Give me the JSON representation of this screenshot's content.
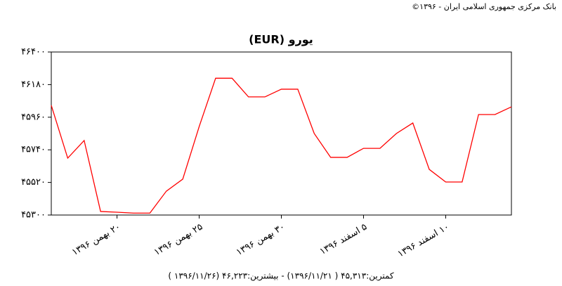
{
  "chart_data": {
    "type": "line",
    "title": "یورو (EUR)",
    "credit": "بانک مرکزی جمهوری اسلامی ایران - ۱۳۹۶©",
    "caption": "کمترین:۴۵,۳۱۳ ( ۱۳۹۶/۱۱/۲۱) - بیشترین:۴۶,۲۲۳ (۱۳۹۶/۱۱/۲۶ )",
    "categories": [
      null,
      null,
      null,
      null,
      "۲۰ بهمن ۱۳۹۶",
      null,
      null,
      null,
      null,
      "۲۵ بهمن ۱۳۹۶",
      null,
      null,
      null,
      null,
      "۳۰ بهمن ۱۳۹۶",
      null,
      null,
      null,
      null,
      "۵ اسفند ۱۳۹۶",
      null,
      null,
      null,
      null,
      "۱۰ اسفند ۱۳۹۶",
      null,
      null,
      null,
      null
    ],
    "series": [
      {
        "name": "یورو",
        "color": "#ff0000",
        "values": [
          46040,
          45684,
          45803,
          45324,
          45319,
          45313,
          45313,
          45461,
          45542,
          45897,
          46223,
          46223,
          46097,
          46097,
          46149,
          46149,
          45850,
          45689,
          45689,
          45750,
          45750,
          45850,
          45921,
          45608,
          45523,
          45523,
          45978,
          45978,
          46030
        ]
      }
    ],
    "ylim": [
      45300,
      46400
    ],
    "yticks": [
      {
        "value": 45300,
        "label": "۴۵۳۰۰"
      },
      {
        "value": 45520,
        "label": "۴۵۵۲۰"
      },
      {
        "value": 45740,
        "label": "۴۵۷۴۰"
      },
      {
        "value": 45960,
        "label": "۴۵۹۶۰"
      },
      {
        "value": 46180,
        "label": "۴۶۱۸۰"
      },
      {
        "value": 46400,
        "label": "۴۶۴۰۰"
      }
    ],
    "grid": false
  }
}
